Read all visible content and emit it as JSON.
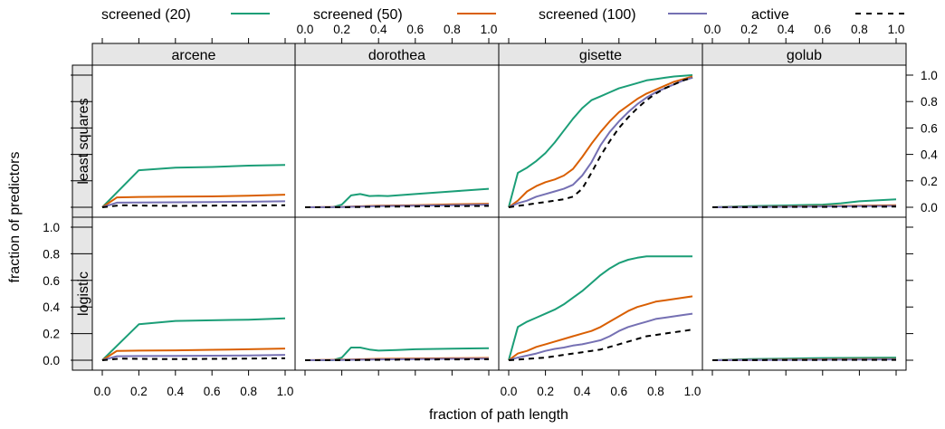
{
  "chart_data": {
    "type": "line",
    "title": "",
    "xlabel": "fraction of path length",
    "ylabel": "fraction of predictors",
    "xlim": [
      0,
      1
    ],
    "ylim": [
      0,
      1
    ],
    "x_ticks": [
      "0.0",
      "0.2",
      "0.4",
      "0.6",
      "0.8",
      "1.0"
    ],
    "y_ticks": [
      "0.0",
      "0.2",
      "0.4",
      "0.6",
      "0.8",
      "1.0"
    ],
    "legend_position": "top",
    "legend": [
      {
        "name": "screened (20)",
        "color": "#1b9e77",
        "style": "solid"
      },
      {
        "name": "screened (50)",
        "color": "#d95f02",
        "style": "solid"
      },
      {
        "name": "screened (100)",
        "color": "#7570b3",
        "style": "solid"
      },
      {
        "name": "active",
        "color": "#000000",
        "style": "dashed"
      }
    ],
    "columns": [
      "arcene",
      "dorothea",
      "gisette",
      "golub"
    ],
    "rows": [
      "least squares",
      "logistic"
    ],
    "panels": [
      {
        "row": "least squares",
        "column": "arcene",
        "series": [
          {
            "name": "screened (20)",
            "x": [
              0,
              0.2,
              0.4,
              0.6,
              0.8,
              1.0
            ],
            "y": [
              0.0,
              0.28,
              0.3,
              0.305,
              0.315,
              0.32
            ]
          },
          {
            "name": "screened (50)",
            "x": [
              0,
              0.08,
              0.2,
              0.4,
              0.6,
              0.8,
              1.0
            ],
            "y": [
              0.0,
              0.075,
              0.078,
              0.08,
              0.082,
              0.088,
              0.095
            ]
          },
          {
            "name": "screened (100)",
            "x": [
              0,
              0.08,
              0.2,
              0.4,
              0.6,
              0.8,
              1.0
            ],
            "y": [
              0.0,
              0.035,
              0.036,
              0.038,
              0.04,
              0.042,
              0.045
            ]
          },
          {
            "name": "active",
            "x": [
              0,
              0.1,
              0.2,
              0.4,
              0.6,
              0.8,
              1.0
            ],
            "y": [
              0.0,
              0.015,
              0.013,
              0.01,
              0.012,
              0.013,
              0.015
            ]
          }
        ]
      },
      {
        "row": "least squares",
        "column": "dorothea",
        "series": [
          {
            "name": "screened (20)",
            "x": [
              0,
              0.15,
              0.2,
              0.25,
              0.3,
              0.35,
              0.4,
              0.45,
              0.5,
              0.6,
              0.8,
              1.0
            ],
            "y": [
              0.0,
              0.0,
              0.02,
              0.09,
              0.1,
              0.085,
              0.088,
              0.085,
              0.09,
              0.1,
              0.12,
              0.14
            ]
          },
          {
            "name": "screened (50)",
            "x": [
              0,
              0.2,
              0.4,
              0.6,
              0.8,
              1.0
            ],
            "y": [
              0.0,
              0.003,
              0.012,
              0.016,
              0.022,
              0.027
            ]
          },
          {
            "name": "screened (100)",
            "x": [
              0,
              0.2,
              0.4,
              0.6,
              0.8,
              1.0
            ],
            "y": [
              0.0,
              0.002,
              0.008,
              0.012,
              0.016,
              0.02
            ]
          },
          {
            "name": "active",
            "x": [
              0,
              0.2,
              0.4,
              0.6,
              0.8,
              1.0
            ],
            "y": [
              0.0,
              0.0,
              0.004,
              0.006,
              0.008,
              0.01
            ]
          }
        ]
      },
      {
        "row": "least squares",
        "column": "gisette",
        "series": [
          {
            "name": "screened (20)",
            "x": [
              0,
              0.05,
              0.1,
              0.15,
              0.2,
              0.25,
              0.3,
              0.35,
              0.4,
              0.45,
              0.5,
              0.55,
              0.6,
              0.65,
              0.7,
              0.75,
              0.8,
              0.85,
              0.9,
              0.95,
              1.0
            ],
            "y": [
              0.0,
              0.26,
              0.3,
              0.35,
              0.41,
              0.49,
              0.58,
              0.67,
              0.75,
              0.81,
              0.84,
              0.87,
              0.9,
              0.92,
              0.94,
              0.96,
              0.97,
              0.98,
              0.99,
              0.995,
              1.0
            ]
          },
          {
            "name": "screened (50)",
            "x": [
              0,
              0.05,
              0.1,
              0.15,
              0.2,
              0.25,
              0.3,
              0.35,
              0.4,
              0.45,
              0.5,
              0.55,
              0.6,
              0.65,
              0.7,
              0.75,
              0.8,
              0.85,
              0.9,
              0.95,
              1.0
            ],
            "y": [
              0.0,
              0.05,
              0.12,
              0.16,
              0.19,
              0.21,
              0.24,
              0.29,
              0.38,
              0.48,
              0.57,
              0.65,
              0.72,
              0.77,
              0.82,
              0.86,
              0.89,
              0.92,
              0.95,
              0.97,
              0.99
            ]
          },
          {
            "name": "screened (100)",
            "x": [
              0,
              0.05,
              0.1,
              0.15,
              0.2,
              0.25,
              0.3,
              0.35,
              0.4,
              0.45,
              0.5,
              0.55,
              0.6,
              0.65,
              0.7,
              0.75,
              0.8,
              0.85,
              0.9,
              0.95,
              1.0
            ],
            "y": [
              0.0,
              0.03,
              0.05,
              0.08,
              0.1,
              0.12,
              0.14,
              0.17,
              0.24,
              0.34,
              0.47,
              0.57,
              0.65,
              0.72,
              0.78,
              0.83,
              0.87,
              0.9,
              0.93,
              0.96,
              0.98
            ]
          },
          {
            "name": "active",
            "x": [
              0,
              0.05,
              0.1,
              0.15,
              0.2,
              0.25,
              0.3,
              0.35,
              0.4,
              0.45,
              0.5,
              0.55,
              0.6,
              0.65,
              0.7,
              0.75,
              0.8,
              0.85,
              0.9,
              0.95,
              1.0
            ],
            "y": [
              0.0,
              0.01,
              0.02,
              0.03,
              0.04,
              0.05,
              0.06,
              0.08,
              0.14,
              0.26,
              0.39,
              0.5,
              0.6,
              0.68,
              0.75,
              0.81,
              0.86,
              0.9,
              0.93,
              0.96,
              0.98
            ]
          }
        ]
      },
      {
        "row": "least squares",
        "column": "golub",
        "series": [
          {
            "name": "screened (20)",
            "x": [
              0,
              0.2,
              0.4,
              0.6,
              0.7,
              0.8,
              1.0
            ],
            "y": [
              0.0,
              0.008,
              0.014,
              0.02,
              0.03,
              0.045,
              0.06
            ]
          },
          {
            "name": "screened (50)",
            "x": [
              0,
              0.2,
              0.4,
              0.6,
              0.8,
              1.0
            ],
            "y": [
              0.0,
              0.003,
              0.006,
              0.009,
              0.012,
              0.016
            ]
          },
          {
            "name": "screened (100)",
            "x": [
              0,
              0.2,
              0.4,
              0.6,
              0.8,
              1.0
            ],
            "y": [
              0.0,
              0.002,
              0.004,
              0.006,
              0.008,
              0.01
            ]
          },
          {
            "name": "active",
            "x": [
              0,
              0.2,
              0.4,
              0.6,
              0.8,
              1.0
            ],
            "y": [
              0.0,
              0.001,
              0.002,
              0.003,
              0.004,
              0.005
            ]
          }
        ]
      },
      {
        "row": "logistic",
        "column": "arcene",
        "series": [
          {
            "name": "screened (20)",
            "x": [
              0,
              0.2,
              0.4,
              0.6,
              0.8,
              1.0
            ],
            "y": [
              0.0,
              0.27,
              0.295,
              0.3,
              0.305,
              0.315
            ]
          },
          {
            "name": "screened (50)",
            "x": [
              0,
              0.08,
              0.2,
              0.4,
              0.6,
              0.8,
              1.0
            ],
            "y": [
              0.0,
              0.07,
              0.072,
              0.074,
              0.078,
              0.082,
              0.088
            ]
          },
          {
            "name": "screened (100)",
            "x": [
              0,
              0.08,
              0.2,
              0.4,
              0.6,
              0.8,
              1.0
            ],
            "y": [
              0.0,
              0.03,
              0.031,
              0.032,
              0.034,
              0.036,
              0.04
            ]
          },
          {
            "name": "active",
            "x": [
              0,
              0.1,
              0.2,
              0.4,
              0.6,
              0.8,
              1.0
            ],
            "y": [
              0.0,
              0.012,
              0.01,
              0.008,
              0.01,
              0.012,
              0.014
            ]
          }
        ]
      },
      {
        "row": "logistic",
        "column": "dorothea",
        "series": [
          {
            "name": "screened (20)",
            "x": [
              0,
              0.15,
              0.2,
              0.25,
              0.3,
              0.35,
              0.4,
              0.5,
              0.6,
              0.8,
              1.0
            ],
            "y": [
              0.0,
              0.0,
              0.02,
              0.095,
              0.095,
              0.08,
              0.072,
              0.077,
              0.082,
              0.087,
              0.09
            ]
          },
          {
            "name": "screened (50)",
            "x": [
              0,
              0.2,
              0.4,
              0.6,
              0.8,
              1.0
            ],
            "y": [
              0.0,
              0.004,
              0.01,
              0.013,
              0.015,
              0.017
            ]
          },
          {
            "name": "screened (100)",
            "x": [
              0,
              0.2,
              0.4,
              0.6,
              0.8,
              1.0
            ],
            "y": [
              0.0,
              0.002,
              0.006,
              0.009,
              0.011,
              0.012
            ]
          },
          {
            "name": "active",
            "x": [
              0,
              0.2,
              0.4,
              0.6,
              0.8,
              1.0
            ],
            "y": [
              0.0,
              0.0,
              0.003,
              0.005,
              0.006,
              0.007
            ]
          }
        ]
      },
      {
        "row": "logistic",
        "column": "gisette",
        "series": [
          {
            "name": "screened (20)",
            "x": [
              0,
              0.05,
              0.1,
              0.15,
              0.2,
              0.25,
              0.3,
              0.35,
              0.4,
              0.45,
              0.5,
              0.55,
              0.6,
              0.65,
              0.7,
              0.75,
              0.8,
              0.85,
              0.9,
              0.95,
              1.0
            ],
            "y": [
              0.0,
              0.25,
              0.29,
              0.32,
              0.35,
              0.38,
              0.42,
              0.47,
              0.52,
              0.58,
              0.64,
              0.69,
              0.73,
              0.755,
              0.77,
              0.78,
              0.78,
              0.78,
              0.78,
              0.78,
              0.78
            ]
          },
          {
            "name": "screened (50)",
            "x": [
              0,
              0.05,
              0.1,
              0.15,
              0.2,
              0.25,
              0.3,
              0.35,
              0.4,
              0.45,
              0.5,
              0.55,
              0.6,
              0.65,
              0.7,
              0.75,
              0.8,
              0.85,
              0.9,
              0.95,
              1.0
            ],
            "y": [
              0.0,
              0.05,
              0.07,
              0.1,
              0.12,
              0.14,
              0.16,
              0.18,
              0.2,
              0.22,
              0.25,
              0.29,
              0.33,
              0.37,
              0.4,
              0.42,
              0.44,
              0.45,
              0.46,
              0.47,
              0.48
            ]
          },
          {
            "name": "screened (100)",
            "x": [
              0,
              0.05,
              0.1,
              0.15,
              0.2,
              0.25,
              0.3,
              0.35,
              0.4,
              0.45,
              0.5,
              0.55,
              0.6,
              0.65,
              0.7,
              0.75,
              0.8,
              0.85,
              0.9,
              0.95,
              1.0
            ],
            "y": [
              0.0,
              0.02,
              0.035,
              0.05,
              0.07,
              0.085,
              0.095,
              0.11,
              0.12,
              0.135,
              0.15,
              0.18,
              0.22,
              0.25,
              0.27,
              0.29,
              0.31,
              0.32,
              0.33,
              0.34,
              0.35
            ]
          },
          {
            "name": "active",
            "x": [
              0,
              0.05,
              0.1,
              0.15,
              0.2,
              0.25,
              0.3,
              0.35,
              0.4,
              0.45,
              0.5,
              0.55,
              0.6,
              0.65,
              0.7,
              0.75,
              0.8,
              0.85,
              0.9,
              0.95,
              1.0
            ],
            "y": [
              0.0,
              0.005,
              0.01,
              0.015,
              0.02,
              0.03,
              0.04,
              0.05,
              0.06,
              0.07,
              0.08,
              0.1,
              0.12,
              0.14,
              0.16,
              0.18,
              0.19,
              0.2,
              0.21,
              0.22,
              0.23
            ]
          }
        ]
      },
      {
        "row": "logistic",
        "column": "golub",
        "series": [
          {
            "name": "screened (20)",
            "x": [
              0,
              0.2,
              0.4,
              0.6,
              0.8,
              1.0
            ],
            "y": [
              0.0,
              0.008,
              0.012,
              0.016,
              0.018,
              0.02
            ]
          },
          {
            "name": "screened (50)",
            "x": [
              0,
              0.2,
              0.4,
              0.6,
              0.8,
              1.0
            ],
            "y": [
              0.0,
              0.003,
              0.005,
              0.007,
              0.008,
              0.009
            ]
          },
          {
            "name": "screened (100)",
            "x": [
              0,
              0.2,
              0.4,
              0.6,
              0.8,
              1.0
            ],
            "y": [
              0.0,
              0.002,
              0.003,
              0.004,
              0.005,
              0.006
            ]
          },
          {
            "name": "active",
            "x": [
              0,
              0.2,
              0.4,
              0.6,
              0.8,
              1.0
            ],
            "y": [
              0.0,
              0.001,
              0.002,
              0.002,
              0.003,
              0.003
            ]
          }
        ]
      }
    ]
  }
}
